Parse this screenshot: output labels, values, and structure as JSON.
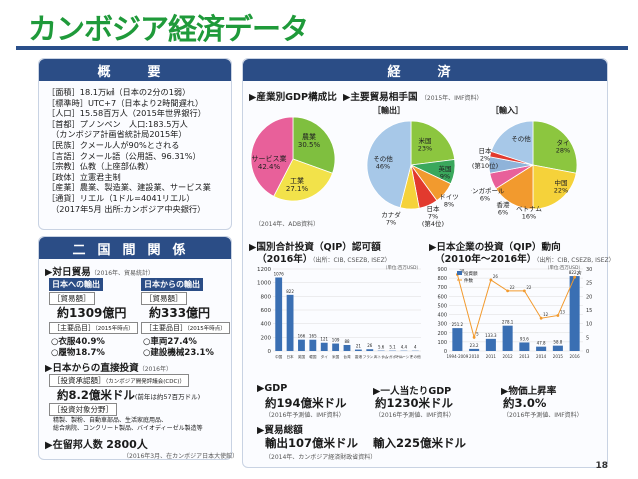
{
  "title": "カンボジア経済データ",
  "page_number": "18",
  "overview": {
    "header": "概　要",
    "lines": [
      "［面積］18.1万㎢（日本の2分の1弱）",
      "［標準時］UTC+7（日本より2時間遅れ）",
      "［人口］15.58百万人（2015年世界銀行）",
      "［首都］プノンペン　人口:183.5万人",
      "　（カンボジア計画省統計局2015年）",
      "［民族］クメール人が90%とされる",
      "［言語］クメール語（公用語、96.31%）",
      "［宗教］仏教（上座部仏教）",
      "［政体］立憲君主制",
      "［産業］農業、製造業、建設業、サービス業",
      "［通貨］リエル（1ドル=4041リエル）",
      "　（2017年5月 出所:カンボジア中央銀行）"
    ]
  },
  "relations": {
    "header": "二国間関係",
    "trade_title": "▶対日貿易",
    "trade_src": "（2016年、貿易統計）",
    "to_japan": "日本への輸出",
    "from_japan": "日本からの輸出",
    "trade_amount_label": "［貿易額］",
    "to_japan_value": "約1309億円",
    "from_japan_value": "約333億円",
    "main_items_label": "［主要品目］",
    "main_items_src": "（2015年時点）",
    "to_japan_items": [
      "○衣服40.9%",
      "○履物18.7%"
    ],
    "from_japan_items": [
      "○車両27.4%",
      "○建設機械23.1%"
    ],
    "fdi_title": "▶日本からの直接投資",
    "fdi_src": "（2016年）",
    "approved_label": "［投資承認額］",
    "approved_src": "（カンボジア開発評議会(CDC)）",
    "approved_value": "約8.2億米ドル",
    "approved_note": "(前年は約57百万ドル)",
    "fields_label": "［投資対象分野］",
    "fields_lines": [
      "精製、製粉、自動車部品、生活家庭用品、",
      "総合病院、コンクリート製品、バイオディーゼル製造等"
    ],
    "residents_title": "▶在留邦人数",
    "residents_value": "2800人",
    "residents_src": "（2016年3月、在カンボジア日本大使館）"
  },
  "economy": {
    "header": "経　済",
    "gdp_comp_title": "▶産業別GDP構成比",
    "trade_partner_title": "▶主要貿易相手国",
    "trade_partner_src": "（2015年、IMF資料）",
    "export_label": "［輸出］",
    "import_label": "［輸入］",
    "gdp_comp_src": "（2014年、ADB資料）",
    "qip_title": "▶国別合計投資（QIP）認可額",
    "qip_sub": "（2016年）",
    "qip_src": "（出所：CIB, CSEZB, ISEZ）",
    "qip_unit": "（単位:百万USD）",
    "jp_title": "▶日本企業の投資（QIP）動向",
    "jp_sub": "（2010年〜2016年）",
    "jp_src": "（出所：CIB, CSEZB, ISEZ）",
    "jp_unit": "（単位:百万USD）",
    "jp_legend": [
      "投資額",
      "件数"
    ],
    "gdp_title": "▶GDP",
    "gdp_value": "約194億米ドル",
    "gdp_src": "（2016年予測値、IMF資料）",
    "gdppc_title": "▶一人当たりGDP",
    "gdppc_value": "約1230米ドル",
    "gdppc_src": "（2016年予測値、IMF資料）",
    "inflation_title": "▶物価上昇率",
    "inflation_value": "約3.0%",
    "inflation_src": "（2016年予測値、IMF資料）",
    "trade_total_title": "▶貿易総額",
    "export_total": "輸出107億米ドル",
    "import_total": "輸入225億米ドル",
    "trade_total_src": "（2014年、カンボジア経済財政省資料）"
  },
  "chart_data": [
    {
      "type": "pie",
      "labels": [
        "農業 30.5%",
        "工業 27.1%",
        "サービス業 42.4%"
      ],
      "values": [
        30.5,
        27.1,
        42.4
      ],
      "colors": [
        "#7fbf3f",
        "#f2e24a",
        "#e8609a"
      ]
    },
    {
      "type": "pie",
      "labels": [
        "米国 23%",
        "英国 9%",
        "ドイツ 8%",
        "日本 7% (第4位)",
        "カナダ 7%",
        "その他 46%"
      ],
      "values": [
        23,
        9,
        8,
        7,
        7,
        46
      ],
      "colors": [
        "#8cc63f",
        "#3aa85c",
        "#f29a2e",
        "#e23a2e",
        "#f5d23a",
        "#a7c8e8"
      ]
    },
    {
      "type": "pie",
      "labels": [
        "タイ 28%",
        "中国 22%",
        "ベトナム 16%",
        "香港 6%",
        "シンガポール 6%",
        "日本 2% (第10位)",
        "その他"
      ],
      "values": [
        28,
        22,
        16,
        6,
        6,
        2,
        20
      ],
      "colors": [
        "#8cc63f",
        "#f5d23a",
        "#f29a2e",
        "#e8609a",
        "#8fb3d9",
        "#e23a2e",
        "#a7c8e8"
      ]
    },
    {
      "type": "bar",
      "categories": [
        "中国",
        "日本",
        "英国",
        "韓国",
        "タイ",
        "米国",
        "台湾",
        "香港",
        "フランス",
        "ベトナム",
        "シンガポール",
        "マレーシア",
        "その他"
      ],
      "values": [
        1076,
        822,
        166,
        165,
        121,
        109,
        88,
        21,
        26,
        5.6,
        5.1,
        4.4,
        4
      ],
      "labels": [
        "1076",
        "822",
        "166",
        "165",
        "121",
        "109",
        "88",
        "21",
        "26",
        "5.6",
        "5.1",
        "4.4",
        "4"
      ],
      "ylim": [
        0,
        1200
      ],
      "yticks": [
        0,
        200,
        400,
        600,
        800,
        1000,
        1200
      ]
    },
    {
      "type": "bar",
      "categories": [
        "1994-2009",
        "2010",
        "2011",
        "2012",
        "2013",
        "2014",
        "2015",
        "2016"
      ],
      "series": [
        {
          "name": "投資額",
          "values": [
            251.2,
            23.2,
            133.3,
            278.1,
            93.6,
            47.8,
            58.8,
            822.4
          ]
        },
        {
          "name": "件数",
          "values": [
            28,
            5,
            26,
            22,
            22,
            12,
            13,
            27
          ]
        }
      ],
      "bar_labels": [
        "251.2",
        "23.2",
        "133.3",
        "278.1",
        "93.6",
        "47.8",
        "58.8",
        "822.4"
      ],
      "ylim": [
        0,
        900
      ],
      "yticks": [
        0,
        100,
        200,
        300,
        400,
        500,
        600,
        700,
        800,
        900
      ],
      "y2lim": [
        0,
        30
      ],
      "y2ticks": [
        0,
        5,
        10,
        15,
        20,
        25,
        30
      ]
    }
  ]
}
